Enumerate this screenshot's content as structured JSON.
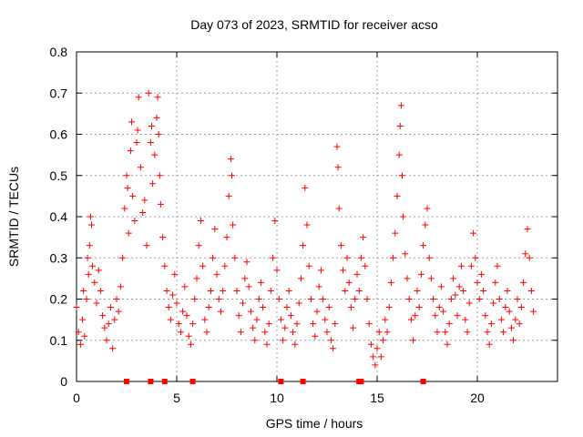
{
  "chart_data": {
    "type": "scatter",
    "title": "Day 073 of 2023, SRMTID for receiver acso",
    "xlabel": "GPS time / hours",
    "ylabel": "SRMTID / TECUs",
    "xlim": [
      0,
      24
    ],
    "ylim": [
      0,
      0.8
    ],
    "grid": true,
    "x_ticks": [
      0,
      5,
      10,
      15,
      20
    ],
    "x_tick_labels": [
      "0",
      "5",
      "10",
      "15",
      "20"
    ],
    "y_ticks": [
      0,
      0.1,
      0.2,
      0.3,
      0.4,
      0.5,
      0.6,
      0.7,
      0.8
    ],
    "y_tick_labels": [
      "0",
      "0.1",
      "0.2",
      "0.3",
      "0.4",
      "0.5",
      "0.6",
      "0.7",
      "0.8"
    ],
    "marker": "plus",
    "color": "#ff0000",
    "series": [
      {
        "name": "SRMTID",
        "points": [
          [
            0.0,
            0.18
          ],
          [
            0.1,
            0.12
          ],
          [
            0.2,
            0.09
          ],
          [
            0.3,
            0.15
          ],
          [
            0.35,
            0.22
          ],
          [
            0.4,
            0.11
          ],
          [
            0.5,
            0.2
          ],
          [
            0.55,
            0.3
          ],
          [
            0.6,
            0.26
          ],
          [
            0.65,
            0.33
          ],
          [
            0.7,
            0.4
          ],
          [
            0.75,
            0.38
          ],
          [
            0.8,
            0.28
          ],
          [
            0.9,
            0.24
          ],
          [
            1.0,
            0.19
          ],
          [
            1.1,
            0.27
          ],
          [
            1.2,
            0.22
          ],
          [
            1.3,
            0.16
          ],
          [
            1.4,
            0.13
          ],
          [
            1.5,
            0.1
          ],
          [
            1.6,
            0.14
          ],
          [
            1.7,
            0.18
          ],
          [
            1.8,
            0.08
          ],
          [
            1.9,
            0.15
          ],
          [
            2.0,
            0.2
          ],
          [
            2.1,
            0.17
          ],
          [
            2.2,
            0.23
          ],
          [
            2.3,
            0.3
          ],
          [
            2.4,
            0.42
          ],
          [
            2.5,
            0.5
          ],
          [
            2.55,
            0.47
          ],
          [
            2.6,
            0.36
          ],
          [
            2.7,
            0.56
          ],
          [
            2.75,
            0.63
          ],
          [
            2.8,
            0.45
          ],
          [
            2.9,
            0.39
          ],
          [
            3.0,
            0.58
          ],
          [
            3.05,
            0.61
          ],
          [
            3.1,
            0.69
          ],
          [
            3.2,
            0.52
          ],
          [
            3.3,
            0.41
          ],
          [
            3.4,
            0.44
          ],
          [
            3.5,
            0.33
          ],
          [
            3.6,
            0.7
          ],
          [
            3.7,
            0.58
          ],
          [
            3.75,
            0.62
          ],
          [
            3.8,
            0.48
          ],
          [
            3.9,
            0.55
          ],
          [
            4.0,
            0.64
          ],
          [
            4.05,
            0.69
          ],
          [
            4.1,
            0.6
          ],
          [
            4.15,
            0.5
          ],
          [
            4.2,
            0.43
          ],
          [
            4.3,
            0.35
          ],
          [
            4.4,
            0.28
          ],
          [
            4.5,
            0.22
          ],
          [
            4.6,
            0.18
          ],
          [
            4.7,
            0.15
          ],
          [
            4.8,
            0.21
          ],
          [
            4.9,
            0.26
          ],
          [
            5.0,
            0.19
          ],
          [
            5.1,
            0.14
          ],
          [
            5.2,
            0.12
          ],
          [
            5.3,
            0.17
          ],
          [
            5.4,
            0.23
          ],
          [
            5.5,
            0.16
          ],
          [
            5.6,
            0.11
          ],
          [
            5.7,
            0.09
          ],
          [
            5.8,
            0.14
          ],
          [
            5.9,
            0.2
          ],
          [
            6.0,
            0.25
          ],
          [
            6.1,
            0.33
          ],
          [
            6.2,
            0.39
          ],
          [
            6.3,
            0.28
          ],
          [
            6.4,
            0.15
          ],
          [
            6.5,
            0.12
          ],
          [
            6.6,
            0.18
          ],
          [
            6.7,
            0.22
          ],
          [
            6.8,
            0.3
          ],
          [
            6.9,
            0.37
          ],
          [
            7.0,
            0.26
          ],
          [
            7.1,
            0.2
          ],
          [
            7.2,
            0.17
          ],
          [
            7.3,
            0.22
          ],
          [
            7.4,
            0.28
          ],
          [
            7.5,
            0.35
          ],
          [
            7.6,
            0.45
          ],
          [
            7.7,
            0.54
          ],
          [
            7.75,
            0.5
          ],
          [
            7.8,
            0.38
          ],
          [
            7.9,
            0.3
          ],
          [
            8.0,
            0.22
          ],
          [
            8.1,
            0.16
          ],
          [
            8.2,
            0.12
          ],
          [
            8.3,
            0.19
          ],
          [
            8.4,
            0.25
          ],
          [
            8.5,
            0.29
          ],
          [
            8.6,
            0.23
          ],
          [
            8.7,
            0.17
          ],
          [
            8.8,
            0.13
          ],
          [
            8.9,
            0.1
          ],
          [
            9.0,
            0.15
          ],
          [
            9.1,
            0.2
          ],
          [
            9.2,
            0.24
          ],
          [
            9.3,
            0.18
          ],
          [
            9.4,
            0.12
          ],
          [
            9.5,
            0.09
          ],
          [
            9.6,
            0.14
          ],
          [
            9.7,
            0.22
          ],
          [
            9.8,
            0.3
          ],
          [
            9.9,
            0.39
          ],
          [
            10.0,
            0.27
          ],
          [
            10.1,
            0.2
          ],
          [
            10.2,
            0.15
          ],
          [
            10.3,
            0.1
          ],
          [
            10.4,
            0.13
          ],
          [
            10.5,
            0.18
          ],
          [
            10.6,
            0.22
          ],
          [
            10.7,
            0.16
          ],
          [
            10.8,
            0.12
          ],
          [
            10.9,
            0.09
          ],
          [
            11.0,
            0.14
          ],
          [
            11.1,
            0.19
          ],
          [
            11.2,
            0.25
          ],
          [
            11.3,
            0.33
          ],
          [
            11.4,
            0.47
          ],
          [
            11.5,
            0.38
          ],
          [
            11.6,
            0.28
          ],
          [
            11.7,
            0.2
          ],
          [
            11.8,
            0.14
          ],
          [
            11.9,
            0.11
          ],
          [
            12.0,
            0.17
          ],
          [
            12.1,
            0.23
          ],
          [
            12.2,
            0.27
          ],
          [
            12.3,
            0.2
          ],
          [
            12.4,
            0.15
          ],
          [
            12.5,
            0.12
          ],
          [
            12.6,
            0.18
          ],
          [
            12.7,
            0.1
          ],
          [
            12.8,
            0.08
          ],
          [
            12.9,
            0.14
          ],
          [
            13.0,
            0.57
          ],
          [
            13.05,
            0.52
          ],
          [
            13.1,
            0.42
          ],
          [
            13.2,
            0.33
          ],
          [
            13.3,
            0.27
          ],
          [
            13.4,
            0.22
          ],
          [
            13.5,
            0.3
          ],
          [
            13.6,
            0.24
          ],
          [
            13.7,
            0.18
          ],
          [
            13.8,
            0.13
          ],
          [
            13.9,
            0.2
          ],
          [
            14.0,
            0.26
          ],
          [
            14.1,
            0.22
          ],
          [
            14.2,
            0.3
          ],
          [
            14.3,
            0.35
          ],
          [
            14.4,
            0.28
          ],
          [
            14.5,
            0.2
          ],
          [
            14.6,
            0.14
          ],
          [
            14.7,
            0.09
          ],
          [
            14.8,
            0.06
          ],
          [
            14.9,
            0.04
          ],
          [
            15.0,
            0.08
          ],
          [
            15.1,
            0.12
          ],
          [
            15.2,
            0.06
          ],
          [
            15.3,
            0.1
          ],
          [
            15.4,
            0.15
          ],
          [
            15.5,
            0.12
          ],
          [
            15.6,
            0.18
          ],
          [
            15.7,
            0.24
          ],
          [
            15.8,
            0.3
          ],
          [
            15.9,
            0.36
          ],
          [
            16.0,
            0.45
          ],
          [
            16.1,
            0.55
          ],
          [
            16.15,
            0.62
          ],
          [
            16.2,
            0.67
          ],
          [
            16.25,
            0.5
          ],
          [
            16.3,
            0.4
          ],
          [
            16.4,
            0.31
          ],
          [
            16.5,
            0.25
          ],
          [
            16.6,
            0.2
          ],
          [
            16.7,
            0.15
          ],
          [
            16.8,
            0.1
          ],
          [
            16.9,
            0.16
          ],
          [
            17.0,
            0.22
          ],
          [
            17.1,
            0.18
          ],
          [
            17.2,
            0.26
          ],
          [
            17.3,
            0.33
          ],
          [
            17.4,
            0.38
          ],
          [
            17.5,
            0.42
          ],
          [
            17.6,
            0.3
          ],
          [
            17.7,
            0.25
          ],
          [
            17.8,
            0.2
          ],
          [
            17.9,
            0.16
          ],
          [
            18.0,
            0.12
          ],
          [
            18.1,
            0.18
          ],
          [
            18.2,
            0.23
          ],
          [
            18.3,
            0.17
          ],
          [
            18.4,
            0.12
          ],
          [
            18.5,
            0.09
          ],
          [
            18.6,
            0.14
          ],
          [
            18.7,
            0.2
          ],
          [
            18.8,
            0.25
          ],
          [
            18.9,
            0.21
          ],
          [
            19.0,
            0.16
          ],
          [
            19.1,
            0.23
          ],
          [
            19.2,
            0.28
          ],
          [
            19.3,
            0.22
          ],
          [
            19.4,
            0.15
          ],
          [
            19.5,
            0.12
          ],
          [
            19.6,
            0.19
          ],
          [
            19.7,
            0.28
          ],
          [
            19.8,
            0.36
          ],
          [
            19.9,
            0.3
          ],
          [
            20.0,
            0.24
          ],
          [
            20.1,
            0.2
          ],
          [
            20.2,
            0.26
          ],
          [
            20.3,
            0.22
          ],
          [
            20.4,
            0.16
          ],
          [
            20.5,
            0.12
          ],
          [
            20.6,
            0.09
          ],
          [
            20.7,
            0.14
          ],
          [
            20.8,
            0.19
          ],
          [
            20.9,
            0.24
          ],
          [
            21.0,
            0.28
          ],
          [
            21.1,
            0.2
          ],
          [
            21.2,
            0.15
          ],
          [
            21.3,
            0.12
          ],
          [
            21.4,
            0.18
          ],
          [
            21.5,
            0.22
          ],
          [
            21.6,
            0.17
          ],
          [
            21.7,
            0.13
          ],
          [
            21.8,
            0.1
          ],
          [
            21.9,
            0.15
          ],
          [
            22.0,
            0.2
          ],
          [
            22.1,
            0.14
          ],
          [
            22.2,
            0.18
          ],
          [
            22.3,
            0.24
          ],
          [
            22.4,
            0.31
          ],
          [
            22.5,
            0.37
          ],
          [
            22.6,
            0.3
          ],
          [
            22.7,
            0.22
          ],
          [
            22.8,
            0.17
          ]
        ]
      }
    ],
    "data_gaps_x": [
      2.5,
      3.7,
      4.4,
      5.8,
      10.2,
      11.3,
      14.1,
      14.2,
      17.3
    ]
  }
}
